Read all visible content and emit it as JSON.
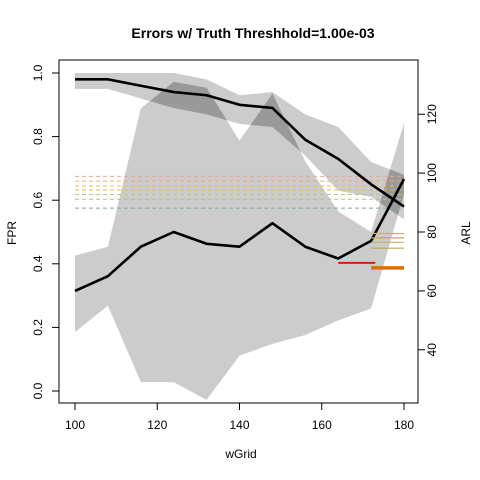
{
  "chart_data": {
    "type": "line",
    "title": "Errors w/ Truth Threshhold=1.00e-03",
    "xlabel": "wGrid",
    "ylabel": "FPR",
    "y2label": "ARL",
    "xlim": [
      100,
      180
    ],
    "ylim": [
      0,
      1
    ],
    "y2lim": [
      26,
      134
    ],
    "x_ticks": [
      "100",
      "120",
      "140",
      "160",
      "180"
    ],
    "y_ticks": [
      "0.0",
      "0.2",
      "0.4",
      "0.6",
      "0.8",
      "1.0"
    ],
    "y2_ticks": [
      "40",
      "60",
      "80",
      "100",
      "120"
    ],
    "x": [
      100,
      108,
      116,
      124,
      132,
      140,
      148,
      156,
      164,
      172,
      180
    ],
    "fpr_band": {
      "upper": [
        1.0,
        1.0,
        1.0,
        1.0,
        0.98,
        0.93,
        0.94,
        0.87,
        0.83,
        0.72,
        0.68
      ],
      "lower": [
        0.95,
        0.95,
        0.92,
        0.89,
        0.87,
        0.84,
        0.83,
        0.74,
        0.63,
        0.61,
        0.54
      ]
    },
    "fpr_line": [
      0.98,
      0.98,
      0.96,
      0.94,
      0.93,
      0.9,
      0.89,
      0.79,
      0.73,
      0.65,
      0.58
    ],
    "arl_band": {
      "upper": [
        72,
        75,
        122,
        131,
        129,
        111,
        127,
        104,
        87,
        80,
        117
      ],
      "lower": [
        46,
        55,
        29,
        29,
        23,
        38,
        42,
        45,
        50,
        54,
        93
      ]
    },
    "arl_line": [
      60,
      65,
      75,
      80,
      76,
      75,
      83,
      75,
      71,
      77,
      98
    ],
    "fpr_hlines": [
      {
        "y": 0.675,
        "x0": 100,
        "x1": 180,
        "color": "#e8a0a0",
        "dashed": true
      },
      {
        "y": 0.66,
        "x0": 100,
        "x1": 180,
        "color": "#e8b070",
        "dashed": true
      },
      {
        "y": 0.645,
        "x0": 100,
        "x1": 180,
        "color": "#e8c060",
        "dashed": true
      },
      {
        "y": 0.632,
        "x0": 100,
        "x1": 180,
        "color": "#d8b860",
        "dashed": true
      },
      {
        "y": 0.618,
        "x0": 100,
        "x1": 180,
        "color": "#c8c070",
        "dashed": true
      },
      {
        "y": 0.603,
        "x0": 100,
        "x1": 180,
        "color": "#b8c080",
        "dashed": true
      },
      {
        "y": 0.575,
        "x0": 100,
        "x1": 180,
        "color": "#80a8a0",
        "dashed": true
      }
    ],
    "arl_hlines": [
      {
        "y": 79.5,
        "x0": 172,
        "x1": 180,
        "color": "#d0b060",
        "width": 1.2
      },
      {
        "y": 78,
        "x0": 172,
        "x1": 180,
        "color": "#d0a050",
        "width": 1.2
      },
      {
        "y": 76.5,
        "x0": 172,
        "x1": 180,
        "color": "#c8b060",
        "width": 1.2
      },
      {
        "y": 74.5,
        "x0": 172,
        "x1": 180,
        "color": "#c8a848",
        "width": 1.2
      },
      {
        "y": 69.5,
        "x0": 164,
        "x1": 173,
        "color": "#cc2020",
        "width": 2
      },
      {
        "y": 67.8,
        "x0": 172,
        "x1": 180,
        "color": "#e07000",
        "width": 3.5
      }
    ],
    "colors": {
      "band": "#cccccc",
      "overlap": "#999999",
      "line": "#000000"
    }
  }
}
